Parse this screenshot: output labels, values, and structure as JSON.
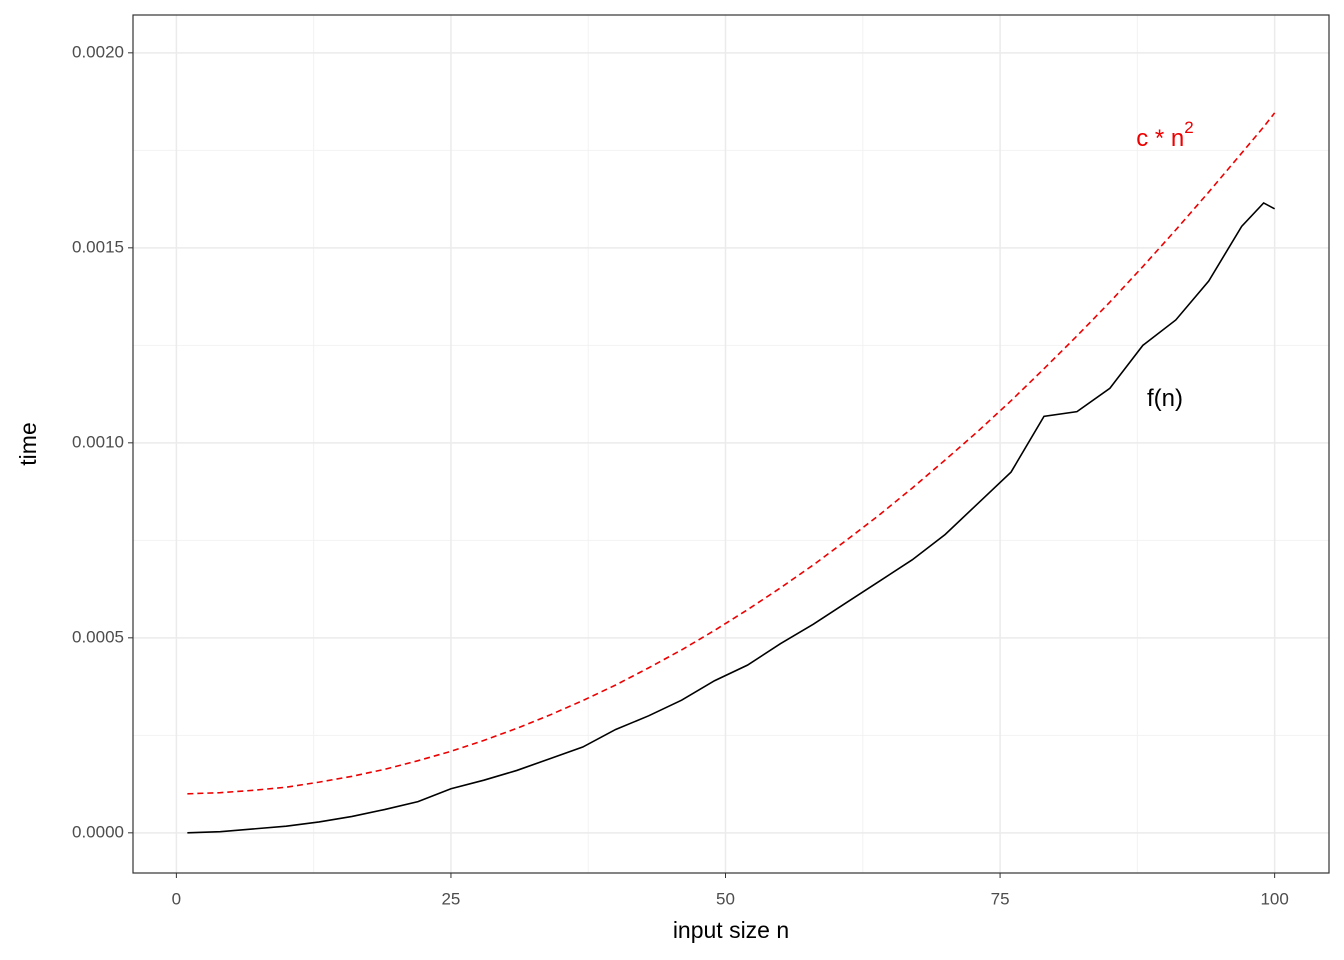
{
  "chart_data": {
    "type": "line",
    "x_label": "input size n",
    "y_label": "time",
    "x": [
      1,
      4,
      7,
      10,
      13,
      16,
      19,
      22,
      25,
      28,
      31,
      34,
      37,
      40,
      43,
      46,
      49,
      52,
      55,
      58,
      61,
      64,
      67,
      70,
      73,
      76,
      79,
      82,
      85,
      88,
      91,
      94,
      97,
      99,
      100
    ],
    "series": [
      {
        "name": "f(n)",
        "color": "#000000",
        "dash": false,
        "values": [
          0,
          3e-06,
          1e-05,
          1.7e-05,
          2.8e-05,
          4.2e-05,
          6e-05,
          8e-05,
          0.000113,
          0.000135,
          0.00016,
          0.00019,
          0.00022,
          0.000265,
          0.0003,
          0.00034,
          0.00039,
          0.00043,
          0.000485,
          0.000535,
          0.00059,
          0.000645,
          0.0007,
          0.000765,
          0.000845,
          0.000925,
          0.001068,
          0.00108,
          0.00114,
          0.00125,
          0.001315,
          0.001415,
          0.001555,
          0.001615,
          0.0016
        ]
      },
      {
        "name": "c * n",
        "superscript": "2",
        "color": "#ee0000",
        "dash": true,
        "values": [
          0.0001,
          0.000103,
          0.000109,
          0.000117,
          0.00013,
          0.000145,
          0.000163,
          0.000185,
          0.000209,
          0.000237,
          0.000268,
          0.000302,
          0.000339,
          0.000379,
          0.000423,
          0.000469,
          0.000519,
          0.000572,
          0.000628,
          0.000687,
          0.00075,
          0.000815,
          0.000884,
          0.000956,
          0.00103,
          0.001108,
          0.00119,
          0.001274,
          0.001361,
          0.001452,
          0.001546,
          0.001643,
          0.001743,
          0.00181,
          0.001846
        ]
      }
    ],
    "xlim": [
      -3.95,
      104.95
    ],
    "xticks": [
      0,
      25,
      50,
      75,
      100
    ],
    "x_minor_ticks": [
      12.5,
      37.5,
      62.5,
      87.5
    ],
    "ylim": [
      -0.000103,
      0.002097
    ],
    "yticks": [
      {
        "value": 0,
        "label": "0.0000"
      },
      {
        "value": 0.0005,
        "label": "0.0005"
      },
      {
        "value": 0.001,
        "label": "0.0010"
      },
      {
        "value": 0.0015,
        "label": "0.0015"
      },
      {
        "value": 0.002,
        "label": "0.0020"
      }
    ],
    "y_minor_ticks": [
      0.00025,
      0.00075,
      0.00125,
      0.00175
    ],
    "grid": true
  }
}
